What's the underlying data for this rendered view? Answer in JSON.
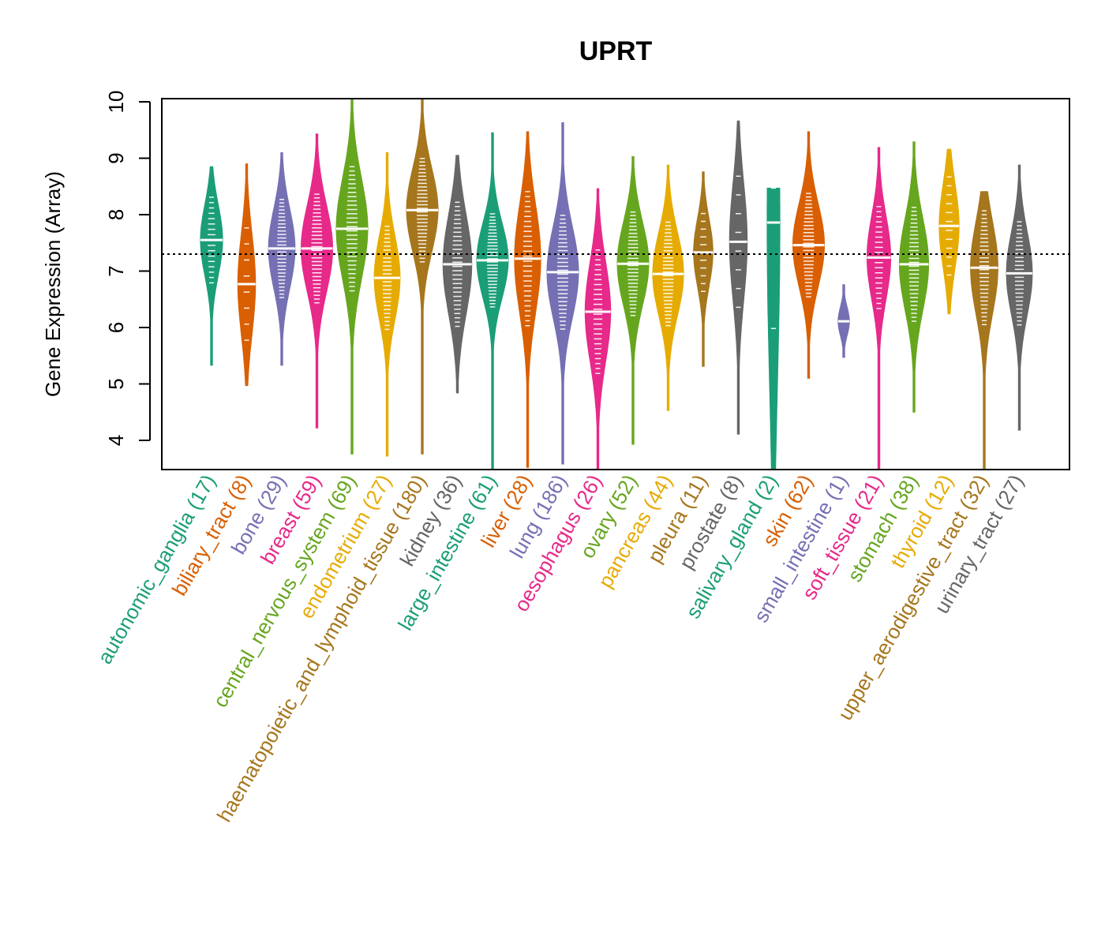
{
  "chart_data": {
    "type": "violin",
    "title": "UPRT",
    "xlabel": "",
    "ylabel": "Gene Expression (Array)",
    "ylim": [
      3.5,
      10.05
    ],
    "yticks": [
      4,
      5,
      6,
      7,
      8,
      9,
      10
    ],
    "reference_line": 7.3,
    "grid": false,
    "legend": "none",
    "categories": [
      {
        "name": "autonomic_ganglia",
        "n": 17,
        "label": "autonomic_ganglia (17)",
        "color": "#1B9E77",
        "median": 7.55,
        "min": 5.33,
        "max": 8.85,
        "q1": 7.1,
        "q3": 7.95
      },
      {
        "name": "biliary_tract",
        "n": 8,
        "label": "biliary_tract (8)",
        "color": "#D95F02",
        "median": 6.77,
        "min": 4.97,
        "max": 8.9,
        "q1": 6.1,
        "q3": 7.3
      },
      {
        "name": "bone",
        "n": 29,
        "label": "bone (29)",
        "color": "#7570B3",
        "median": 7.4,
        "min": 5.33,
        "max": 9.1,
        "q1": 6.9,
        "q3": 7.85
      },
      {
        "name": "breast",
        "n": 59,
        "label": "breast (59)",
        "color": "#E7298A",
        "median": 7.4,
        "min": 4.22,
        "max": 9.43,
        "q1": 6.85,
        "q3": 7.9
      },
      {
        "name": "central_nervous_system",
        "n": 69,
        "label": "central_nervous_system (69)",
        "color": "#66A61E",
        "median": 7.75,
        "min": 3.76,
        "max": 10.05,
        "q1": 7.1,
        "q3": 8.3
      },
      {
        "name": "endometrium",
        "n": 27,
        "label": "endometrium (27)",
        "color": "#E6AB02",
        "median": 6.88,
        "min": 3.72,
        "max": 9.1,
        "q1": 6.4,
        "q3": 7.4
      },
      {
        "name": "haematopoietic_and_lymphoid_tissue",
        "n": 180,
        "label": "haematopoietic_and_lymphoid_tissue (180)",
        "color": "#A6761D",
        "median": 8.08,
        "min": 3.76,
        "max": 10.05,
        "q1": 7.6,
        "q3": 8.6
      },
      {
        "name": "kidney",
        "n": 36,
        "label": "kidney (36)",
        "color": "#666666",
        "median": 7.12,
        "min": 4.84,
        "max": 9.05,
        "q1": 6.5,
        "q3": 7.7
      },
      {
        "name": "large_intestine",
        "n": 61,
        "label": "large_intestine (61)",
        "color": "#1B9E77",
        "median": 7.19,
        "min": 3.5,
        "max": 9.45,
        "q1": 6.8,
        "q3": 7.7
      },
      {
        "name": "liver",
        "n": 28,
        "label": "liver (28)",
        "color": "#D95F02",
        "median": 7.22,
        "min": 3.52,
        "max": 9.47,
        "q1": 6.6,
        "q3": 7.9
      },
      {
        "name": "lung",
        "n": 186,
        "label": "lung (186)",
        "color": "#7570B3",
        "median": 6.98,
        "min": 3.58,
        "max": 9.63,
        "q1": 6.5,
        "q3": 7.6
      },
      {
        "name": "oesophagus",
        "n": 26,
        "label": "oesophagus (26)",
        "color": "#E7298A",
        "median": 6.28,
        "min": 3.5,
        "max": 8.46,
        "q1": 5.7,
        "q3": 6.9
      },
      {
        "name": "ovary",
        "n": 52,
        "label": "ovary (52)",
        "color": "#66A61E",
        "median": 7.13,
        "min": 3.93,
        "max": 9.03,
        "q1": 6.6,
        "q3": 7.6
      },
      {
        "name": "pancreas",
        "n": 44,
        "label": "pancreas (44)",
        "color": "#E6AB02",
        "median": 6.95,
        "min": 4.53,
        "max": 8.88,
        "q1": 6.5,
        "q3": 7.5
      },
      {
        "name": "pleura",
        "n": 11,
        "label": "pleura (11)",
        "color": "#A6761D",
        "median": 7.33,
        "min": 5.31,
        "max": 8.76,
        "q1": 7.0,
        "q3": 7.8
      },
      {
        "name": "prostate",
        "n": 8,
        "label": "prostate (8)",
        "color": "#666666",
        "median": 7.52,
        "min": 4.11,
        "max": 9.66,
        "q1": 6.9,
        "q3": 8.3
      },
      {
        "name": "salivary_gland",
        "n": 2,
        "label": "salivary_gland (2)",
        "color": "#1B9E77",
        "median": 7.86,
        "min": 3.5,
        "max": 8.47,
        "q1": 3.9,
        "q3": 7.86
      },
      {
        "name": "skin",
        "n": 62,
        "label": "skin (62)",
        "color": "#D95F02",
        "median": 7.46,
        "min": 5.1,
        "max": 9.47,
        "q1": 7.0,
        "q3": 8.0
      },
      {
        "name": "small_intestine",
        "n": 1,
        "label": "small_intestine (1)",
        "color": "#7570B3",
        "median": 6.11,
        "min": 5.47,
        "max": 6.76,
        "q1": 6.11,
        "q3": 6.11
      },
      {
        "name": "soft_tissue",
        "n": 21,
        "label": "soft_tissue (21)",
        "color": "#E7298A",
        "median": 7.24,
        "min": 3.5,
        "max": 9.19,
        "q1": 6.8,
        "q3": 7.8
      },
      {
        "name": "stomach",
        "n": 38,
        "label": "stomach (38)",
        "color": "#66A61E",
        "median": 7.12,
        "min": 4.5,
        "max": 9.29,
        "q1": 6.6,
        "q3": 7.7
      },
      {
        "name": "thyroid",
        "n": 12,
        "label": "thyroid (12)",
        "color": "#E6AB02",
        "median": 7.8,
        "min": 6.24,
        "max": 9.16,
        "q1": 7.2,
        "q3": 8.2
      },
      {
        "name": "upper_aerodigestive_tract",
        "n": 32,
        "label": "upper_aerodigestive_tract (32)",
        "color": "#A6761D",
        "median": 7.06,
        "min": 3.5,
        "max": 8.41,
        "q1": 6.4,
        "q3": 7.5
      },
      {
        "name": "urinary_tract",
        "n": 27,
        "label": "urinary_tract (27)",
        "color": "#666666",
        "median": 6.96,
        "min": 4.18,
        "max": 8.88,
        "q1": 6.5,
        "q3": 7.5
      }
    ]
  }
}
